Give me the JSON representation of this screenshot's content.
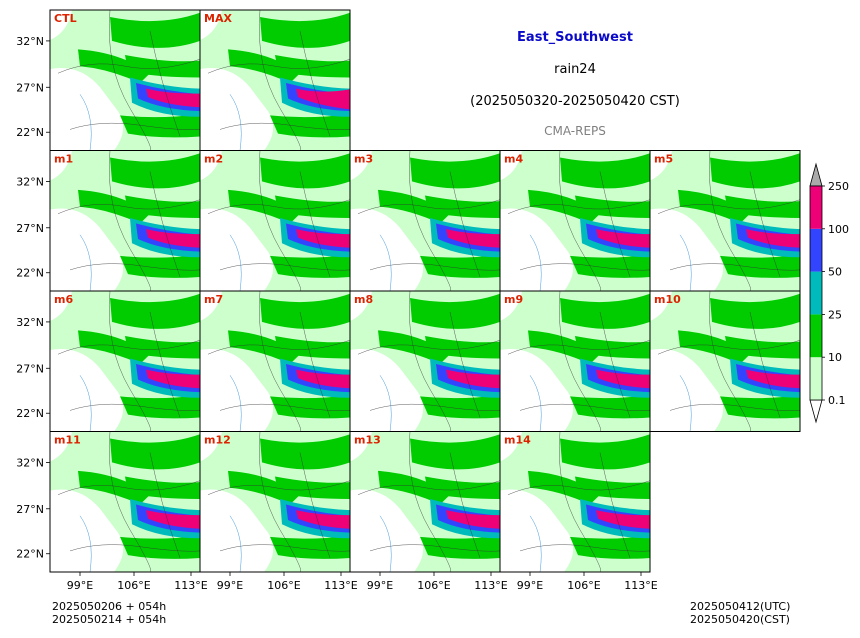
{
  "title": {
    "region": "East_Southwest",
    "variable": "rain24",
    "period": "(2025050320-2025050420 CST)",
    "model": "CMA-REPS"
  },
  "panels": [
    "CTL",
    "MAX",
    "m1",
    "m2",
    "m3",
    "m4",
    "m5",
    "m6",
    "m7",
    "m8",
    "m9",
    "m10",
    "m11",
    "m12",
    "m13",
    "m14"
  ],
  "lat_ticks": [
    "32°N",
    "27°N",
    "22°N"
  ],
  "lon_ticks": [
    "99°E",
    "106°E",
    "113°E"
  ],
  "colorbar": {
    "levels": [
      "0.1",
      "10",
      "25",
      "50",
      "100",
      "250"
    ],
    "colors": [
      "#ffffff",
      "#ccffcc",
      "#00cc00",
      "#00bbbb",
      "#3344ff",
      "#ee0077",
      "#aaaaaa"
    ]
  },
  "footer": {
    "init_utc": "2025050206  +  054h",
    "init_cst": "2025050214  +  054h",
    "valid_utc": "2025050412(UTC)",
    "valid_cst": "2025050420(CST)"
  }
}
